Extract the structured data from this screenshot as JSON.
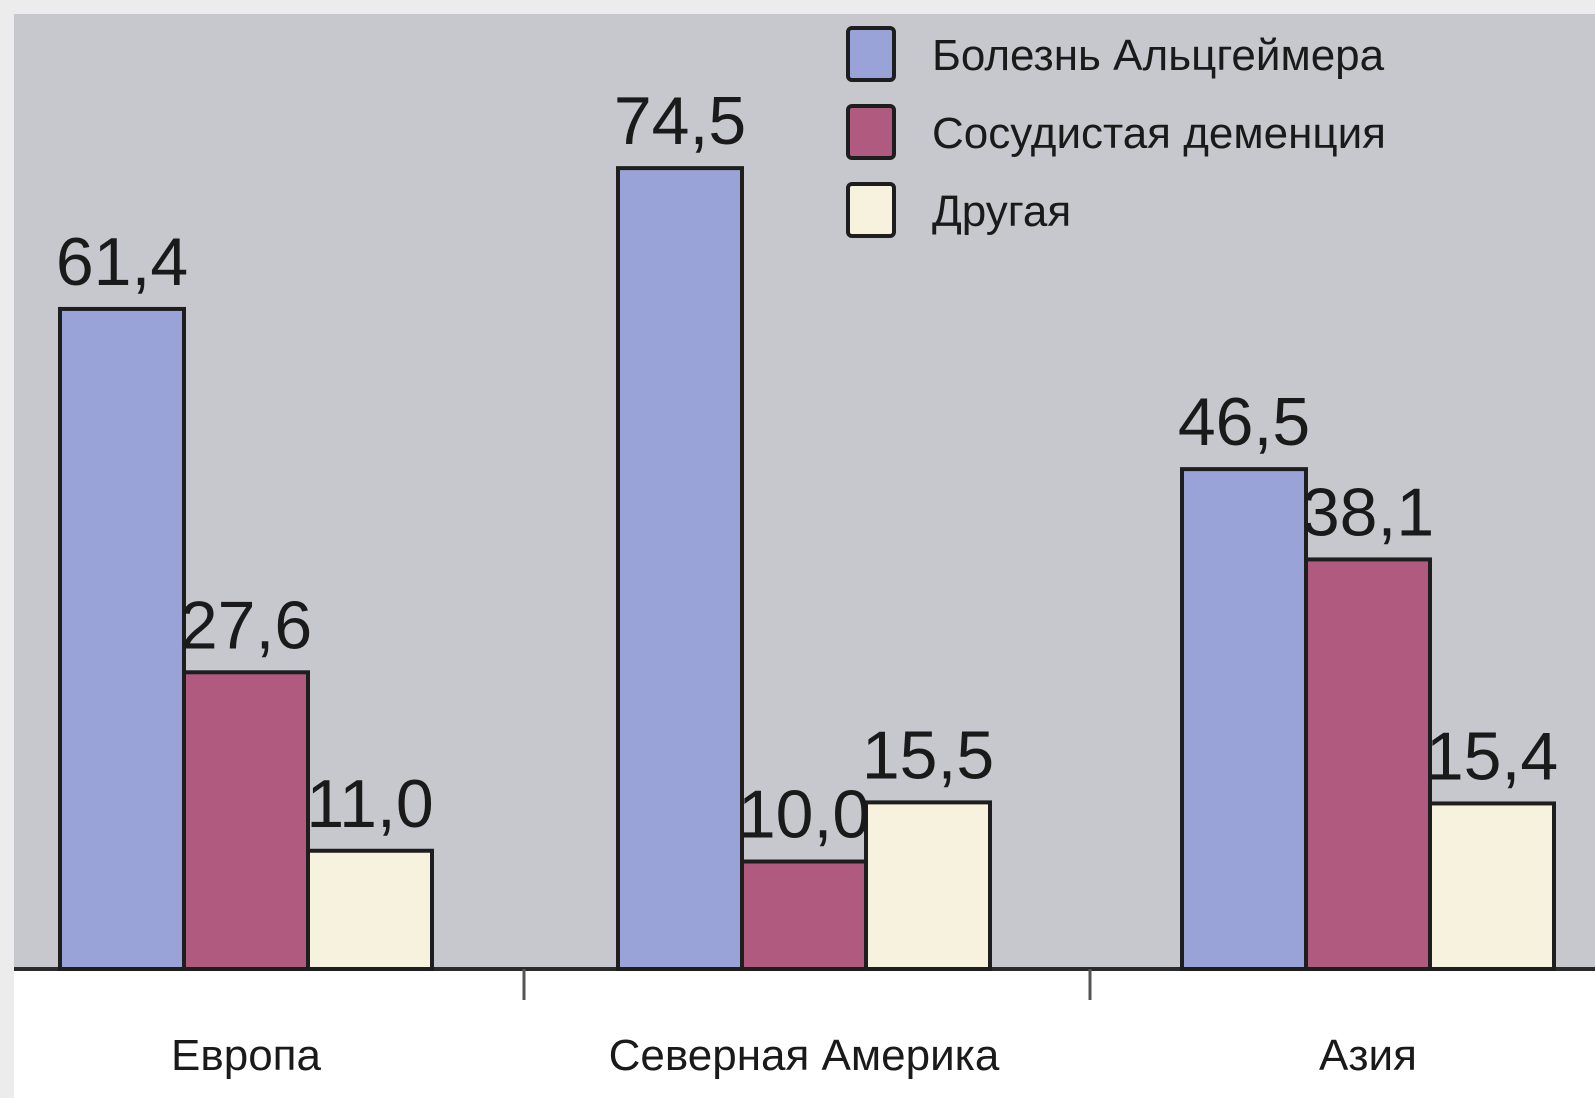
{
  "chart_data": {
    "type": "bar",
    "categories": [
      "Европа",
      "Северная Америка",
      "Азия"
    ],
    "series": [
      {
        "name": "Болезнь Альцгеймера",
        "values": [
          61.4,
          74.5,
          46.5
        ],
        "labels": [
          "61,4",
          "74,5",
          "46,5"
        ],
        "color": "#9aa3d8"
      },
      {
        "name": "Сосудистая деменция",
        "values": [
          27.6,
          10.0,
          38.1
        ],
        "labels": [
          "27,6",
          "10,0",
          "38,1"
        ],
        "color": "#b05a80"
      },
      {
        "name": "Другая",
        "values": [
          11.0,
          15.5,
          15.4
        ],
        "labels": [
          "11,0",
          "15,5",
          "15,4"
        ],
        "color": "#f6f2de"
      }
    ],
    "ylim": [
      0,
      80
    ],
    "grid": false,
    "legend": "top-right",
    "background_color": "#c7c8cd",
    "bar_edge_color": "#1e1e1e"
  }
}
